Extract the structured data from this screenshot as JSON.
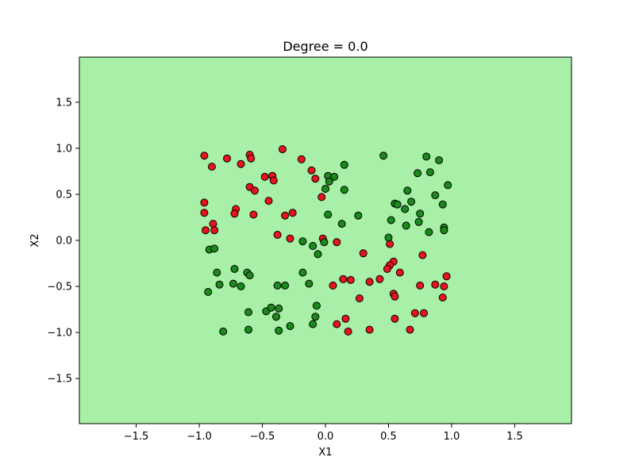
{
  "chart_data": {
    "type": "scatter",
    "title": "Degree = 0.0",
    "xlabel": "X1",
    "ylabel": "X2",
    "xlim": [
      -1.95,
      1.95
    ],
    "ylim": [
      -1.99,
      1.99
    ],
    "xticks": [
      -1.5,
      -1.0,
      -0.5,
      0.0,
      0.5,
      1.0,
      1.5
    ],
    "yticks": [
      -1.5,
      -1.0,
      -0.5,
      0.0,
      0.5,
      1.0,
      1.5
    ],
    "xtick_labels": [
      "−1.5",
      "−1.0",
      "−0.5",
      "0.0",
      "0.5",
      "1.0",
      "1.5"
    ],
    "ytick_labels": [
      "−1.5",
      "−1.0",
      "−0.5",
      "0.0",
      "0.5",
      "1.0",
      "1.5"
    ],
    "grid": false,
    "legend": "none",
    "background_region_color": "#a8f0a8",
    "series": [
      {
        "color": "#e8141c",
        "points": [
          [
            -0.96,
            0.92
          ],
          [
            -0.9,
            0.8
          ],
          [
            -0.78,
            0.89
          ],
          [
            -0.67,
            0.83
          ],
          [
            -0.6,
            0.93
          ],
          [
            -0.59,
            0.89
          ],
          [
            -0.34,
            0.99
          ],
          [
            -0.19,
            0.88
          ],
          [
            -0.48,
            0.69
          ],
          [
            -0.42,
            0.7
          ],
          [
            -0.41,
            0.65
          ],
          [
            -0.11,
            0.76
          ],
          [
            -0.08,
            0.67
          ],
          [
            -0.6,
            0.58
          ],
          [
            -0.56,
            0.54
          ],
          [
            -0.45,
            0.43
          ],
          [
            -0.03,
            0.47
          ],
          [
            -0.96,
            0.41
          ],
          [
            -0.96,
            0.3
          ],
          [
            -0.71,
            0.34
          ],
          [
            -0.72,
            0.29
          ],
          [
            -0.57,
            0.28
          ],
          [
            -0.32,
            0.27
          ],
          [
            -0.26,
            0.3
          ],
          [
            -0.89,
            0.18
          ],
          [
            -0.95,
            0.11
          ],
          [
            -0.88,
            0.11
          ],
          [
            -0.38,
            0.06
          ],
          [
            -0.28,
            0.02
          ],
          [
            -0.02,
            0.02
          ],
          [
            0.09,
            -0.02
          ],
          [
            0.3,
            -0.14
          ],
          [
            0.51,
            -0.04
          ],
          [
            0.77,
            -0.16
          ],
          [
            0.54,
            -0.23
          ],
          [
            0.51,
            -0.27
          ],
          [
            0.49,
            -0.31
          ],
          [
            0.59,
            -0.35
          ],
          [
            0.96,
            -0.39
          ],
          [
            0.43,
            -0.42
          ],
          [
            0.35,
            -0.45
          ],
          [
            0.14,
            -0.42
          ],
          [
            0.2,
            -0.43
          ],
          [
            0.06,
            -0.49
          ],
          [
            0.75,
            -0.49
          ],
          [
            0.87,
            -0.48
          ],
          [
            0.94,
            -0.5
          ],
          [
            0.54,
            -0.58
          ],
          [
            0.55,
            -0.61
          ],
          [
            0.27,
            -0.63
          ],
          [
            0.93,
            -0.62
          ],
          [
            0.71,
            -0.79
          ],
          [
            0.78,
            -0.79
          ],
          [
            0.55,
            -0.85
          ],
          [
            0.16,
            -0.85
          ],
          [
            0.09,
            -0.91
          ],
          [
            0.35,
            -0.97
          ],
          [
            0.67,
            -0.97
          ],
          [
            0.18,
            -0.99
          ]
        ]
      },
      {
        "color": "#1a8a1a",
        "points": [
          [
            0.46,
            0.92
          ],
          [
            0.8,
            0.91
          ],
          [
            0.9,
            0.87
          ],
          [
            0.15,
            0.82
          ],
          [
            0.73,
            0.73
          ],
          [
            0.83,
            0.74
          ],
          [
            0.02,
            0.7
          ],
          [
            0.07,
            0.69
          ],
          [
            0.03,
            0.64
          ],
          [
            0.0,
            0.56
          ],
          [
            0.15,
            0.55
          ],
          [
            0.97,
            0.6
          ],
          [
            0.65,
            0.54
          ],
          [
            0.87,
            0.49
          ],
          [
            0.55,
            0.4
          ],
          [
            0.57,
            0.39
          ],
          [
            0.68,
            0.42
          ],
          [
            0.93,
            0.39
          ],
          [
            0.63,
            0.34
          ],
          [
            0.75,
            0.29
          ],
          [
            0.02,
            0.28
          ],
          [
            0.26,
            0.27
          ],
          [
            0.52,
            0.22
          ],
          [
            0.74,
            0.2
          ],
          [
            0.13,
            0.18
          ],
          [
            0.64,
            0.16
          ],
          [
            0.94,
            0.14
          ],
          [
            0.94,
            0.11
          ],
          [
            0.82,
            0.09
          ],
          [
            0.5,
            0.03
          ],
          [
            -0.01,
            -0.02
          ],
          [
            -0.18,
            -0.01
          ],
          [
            -0.1,
            -0.06
          ],
          [
            -0.06,
            -0.15
          ],
          [
            -0.92,
            -0.1
          ],
          [
            -0.88,
            -0.09
          ],
          [
            -0.86,
            -0.35
          ],
          [
            -0.72,
            -0.31
          ],
          [
            -0.62,
            -0.35
          ],
          [
            -0.6,
            -0.38
          ],
          [
            -0.18,
            -0.35
          ],
          [
            -0.84,
            -0.48
          ],
          [
            -0.73,
            -0.47
          ],
          [
            -0.67,
            -0.5
          ],
          [
            -0.38,
            -0.49
          ],
          [
            -0.32,
            -0.49
          ],
          [
            -0.13,
            -0.47
          ],
          [
            -0.93,
            -0.56
          ],
          [
            -0.61,
            -0.78
          ],
          [
            -0.47,
            -0.77
          ],
          [
            -0.43,
            -0.73
          ],
          [
            -0.37,
            -0.74
          ],
          [
            -0.39,
            -0.83
          ],
          [
            -0.07,
            -0.71
          ],
          [
            -0.08,
            -0.83
          ],
          [
            -0.1,
            -0.91
          ],
          [
            -0.28,
            -0.93
          ],
          [
            -0.37,
            -0.98
          ],
          [
            -0.61,
            -0.97
          ],
          [
            -0.81,
            -0.99
          ]
        ]
      }
    ]
  }
}
